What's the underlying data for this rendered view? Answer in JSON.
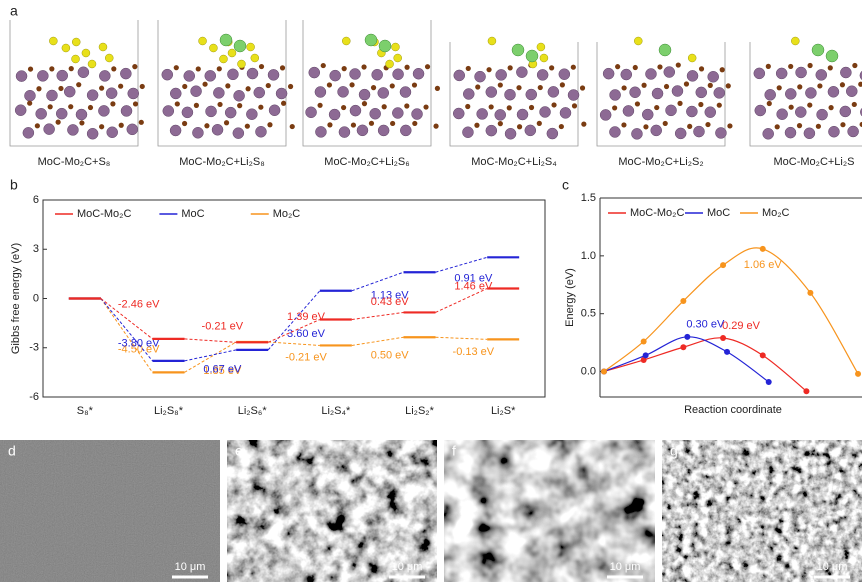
{
  "structures": {
    "panel": "a",
    "labels": [
      "MoC-Mo₂C+S₈",
      "MoC-Mo₂C+Li₂S₈",
      "MoC-Mo₂C+Li₂S₆",
      "MoC-Mo₂C+Li₂S₄",
      "MoC-Mo₂C+Li₂S₂",
      "MoC-Mo₂C+Li₂S"
    ]
  },
  "chart_data": [
    {
      "type": "step",
      "panel": "b",
      "ylabel": "Gibbs free energy (eV)",
      "categories": [
        "S₈*",
        "Li₂S₈*",
        "Li₂S₆*",
        "Li₂S₄*",
        "Li₂S₂*",
        "Li₂S*"
      ],
      "ylim": [
        -6,
        6
      ],
      "yticks": [
        -6,
        -3,
        0,
        3,
        6
      ],
      "legend": "upper left",
      "series": [
        {
          "name": "MoC-Mo₂C",
          "color": "#ee2a24",
          "values": [
            0,
            -2.46,
            -2.67,
            -1.28,
            -0.85,
            0.61
          ],
          "step_labels": [
            "-2.46 eV",
            "-0.21 eV",
            "1.39 eV",
            "0.43 eV",
            "1.46 eV"
          ]
        },
        {
          "name": "MoC",
          "color": "#2424d6",
          "values": [
            0,
            -3.8,
            -3.13,
            0.47,
            1.6,
            2.51
          ],
          "step_labels": [
            "-3.80 eV",
            "0.67 eV",
            "3.60 eV",
            "1.13 eV",
            "0.91 eV"
          ]
        },
        {
          "name": "Mo₂C",
          "color": "#f7941d",
          "values": [
            0,
            -4.5,
            -2.65,
            -2.86,
            -2.36,
            -2.49
          ],
          "step_labels": [
            "-4.50 eV",
            "1.85 eV",
            "-0.21 eV",
            "0.50 eV",
            "-0.13 eV"
          ]
        }
      ]
    },
    {
      "type": "line",
      "panel": "c",
      "xlabel": "Reaction coordinate",
      "ylabel": "Energy (eV)",
      "xlim": [
        -0.1,
        6.5
      ],
      "ylim": [
        -0.22,
        1.5
      ],
      "yticks": [
        {
          "value": 0,
          "label": "0.0"
        },
        {
          "value": 0.5,
          "label": "0.5"
        },
        {
          "value": 1,
          "label": "1.0"
        },
        {
          "value": 1.5,
          "label": "1.5"
        }
      ],
      "legend": "upper left",
      "series": [
        {
          "name": "MoC-Mo₂C",
          "color": "#ee2a24",
          "x": [
            0,
            1,
            2,
            3,
            4,
            5.1
          ],
          "values": [
            0,
            0.1,
            0.21,
            0.29,
            0.14,
            -0.17
          ],
          "value_labels": [
            null,
            null,
            null,
            "0.29 eV",
            null,
            null
          ]
        },
        {
          "name": "MoC",
          "color": "#2424d6",
          "x": [
            0,
            1.05,
            2.1,
            3.1,
            4.15
          ],
          "values": [
            0,
            0.14,
            0.3,
            0.17,
            -0.09
          ],
          "value_labels": [
            null,
            null,
            "0.30 eV",
            null,
            null
          ]
        },
        {
          "name": "Mo₂C",
          "color": "#f7941d",
          "x": [
            0,
            1,
            2,
            3,
            4,
            5.2,
            6.4
          ],
          "values": [
            0,
            0.26,
            0.61,
            0.92,
            1.06,
            0.68,
            -0.02
          ],
          "value_labels": [
            null,
            null,
            null,
            null,
            "1.06 eV",
            null,
            null
          ]
        }
      ]
    }
  ],
  "micrographs": [
    {
      "panel": "d",
      "scale": "10 μm"
    },
    {
      "panel": "e",
      "scale": "10 μm"
    },
    {
      "panel": "f",
      "scale": "10 μm"
    },
    {
      "panel": "g",
      "scale": "10 μm"
    }
  ]
}
